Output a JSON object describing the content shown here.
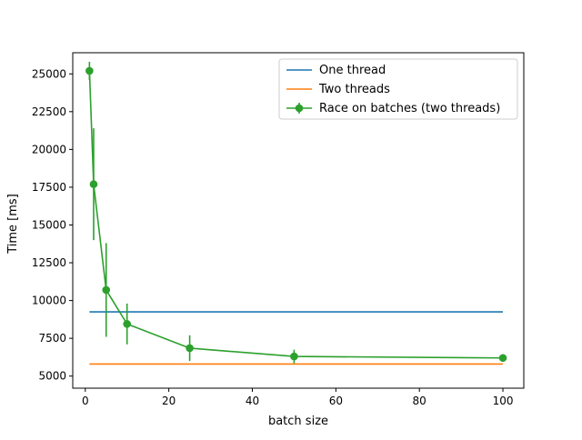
{
  "chart_data": {
    "type": "line",
    "title": "",
    "xlabel": "batch size",
    "ylabel": "Time [ms]",
    "xlim": [
      -3,
      105
    ],
    "ylim": [
      4200,
      26400
    ],
    "xticks": [
      0,
      20,
      40,
      60,
      80,
      100
    ],
    "yticks": [
      5000,
      7500,
      10000,
      12500,
      15000,
      17500,
      20000,
      22500,
      25000
    ],
    "grid": false,
    "legend_position": "top-right",
    "series": [
      {
        "name": "One thread",
        "kind": "hline",
        "color": "#1f77b4",
        "x": [
          1,
          100
        ],
        "y": [
          9250,
          9250
        ]
      },
      {
        "name": "Two threads",
        "kind": "hline",
        "color": "#ff7f0e",
        "x": [
          1,
          100
        ],
        "y": [
          5800,
          5800
        ]
      },
      {
        "name": "Race on batches (two threads)",
        "kind": "errorbar",
        "color": "#2ca02c",
        "x": [
          1,
          2,
          5,
          10,
          25,
          50,
          100
        ],
        "y": [
          25200,
          17700,
          10700,
          8450,
          6850,
          6300,
          6200
        ],
        "yerr": [
          600,
          3700,
          3100,
          1350,
          850,
          450,
          250
        ]
      }
    ]
  }
}
